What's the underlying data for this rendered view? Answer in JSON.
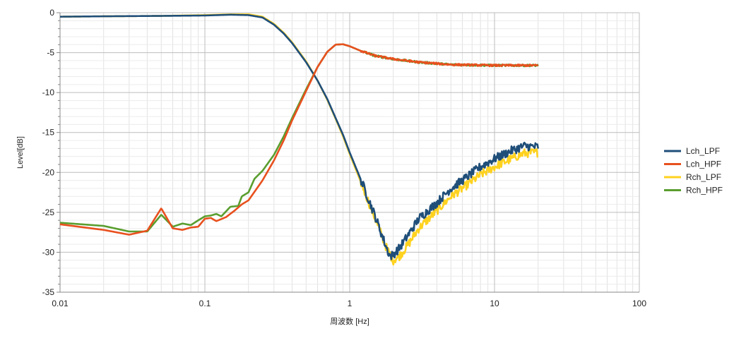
{
  "chart_data": {
    "type": "line",
    "xscale": "log",
    "xlabel": "周波数 [Hz]",
    "ylabel": "Level[dB]",
    "xlim": [
      0.01,
      100
    ],
    "ylim": [
      -35,
      0
    ],
    "xticks": [
      0.01,
      0.1,
      1,
      10,
      100
    ],
    "xtick_labels": [
      "0.01",
      "0.1",
      "1",
      "10",
      "100"
    ],
    "yticks": [
      0,
      -5,
      -10,
      -15,
      -20,
      -25,
      -30,
      -35
    ],
    "ytick_labels": [
      "0",
      "-5",
      "-10",
      "-15",
      "-20",
      "-25",
      "-30",
      "-35"
    ],
    "grid": true,
    "legend_position": "right",
    "series": [
      {
        "name": "Lch_LPF",
        "color": "#1f4e79",
        "points": [
          [
            0.01,
            -0.5
          ],
          [
            0.02,
            -0.45
          ],
          [
            0.05,
            -0.4
          ],
          [
            0.1,
            -0.35
          ],
          [
            0.15,
            -0.25
          ],
          [
            0.2,
            -0.3
          ],
          [
            0.25,
            -0.6
          ],
          [
            0.3,
            -1.5
          ],
          [
            0.35,
            -2.6
          ],
          [
            0.4,
            -3.8
          ],
          [
            0.5,
            -6.2
          ],
          [
            0.6,
            -8.5
          ],
          [
            0.7,
            -10.8
          ],
          [
            0.8,
            -13.2
          ],
          [
            0.9,
            -15.3
          ],
          [
            1.0,
            -17.5
          ],
          [
            1.2,
            -21.0
          ],
          [
            1.5,
            -25.5
          ],
          [
            1.8,
            -29.5
          ],
          [
            1.9,
            -30.5
          ],
          [
            2.0,
            -30.3
          ],
          [
            2.2,
            -29.5
          ],
          [
            2.5,
            -28.0
          ],
          [
            3,
            -25.8
          ],
          [
            4,
            -23.8
          ],
          [
            5,
            -22.0
          ],
          [
            6,
            -21.0
          ],
          [
            8,
            -19.3
          ],
          [
            10,
            -18.3
          ],
          [
            13,
            -17.3
          ],
          [
            16,
            -16.7
          ],
          [
            20,
            -16.8
          ]
        ]
      },
      {
        "name": "Lch_HPF",
        "color": "#e8501e",
        "points": [
          [
            0.01,
            -26.5
          ],
          [
            0.02,
            -27.2
          ],
          [
            0.03,
            -27.8
          ],
          [
            0.04,
            -27.3
          ],
          [
            0.05,
            -24.5
          ],
          [
            0.06,
            -27.0
          ],
          [
            0.07,
            -27.2
          ],
          [
            0.08,
            -26.9
          ],
          [
            0.09,
            -26.8
          ],
          [
            0.1,
            -25.8
          ],
          [
            0.11,
            -25.7
          ],
          [
            0.12,
            -26.1
          ],
          [
            0.14,
            -25.6
          ],
          [
            0.16,
            -24.8
          ],
          [
            0.18,
            -24.0
          ],
          [
            0.2,
            -23.5
          ],
          [
            0.25,
            -21.0
          ],
          [
            0.3,
            -18.5
          ],
          [
            0.35,
            -16.0
          ],
          [
            0.4,
            -13.5
          ],
          [
            0.5,
            -9.8
          ],
          [
            0.6,
            -6.8
          ],
          [
            0.7,
            -4.9
          ],
          [
            0.8,
            -4.0
          ],
          [
            0.9,
            -3.95
          ],
          [
            1.0,
            -4.2
          ],
          [
            1.2,
            -4.8
          ],
          [
            1.5,
            -5.4
          ],
          [
            2,
            -5.8
          ],
          [
            3,
            -6.2
          ],
          [
            5,
            -6.5
          ],
          [
            10,
            -6.6
          ],
          [
            20,
            -6.6
          ]
        ]
      },
      {
        "name": "Rch_LPF",
        "color": "#ffd21f",
        "points": [
          [
            0.01,
            -0.5
          ],
          [
            0.02,
            -0.45
          ],
          [
            0.05,
            -0.4
          ],
          [
            0.1,
            -0.3
          ],
          [
            0.15,
            -0.2
          ],
          [
            0.2,
            -0.2
          ],
          [
            0.25,
            -0.5
          ],
          [
            0.3,
            -1.4
          ],
          [
            0.35,
            -2.5
          ],
          [
            0.4,
            -3.7
          ],
          [
            0.5,
            -6.1
          ],
          [
            0.6,
            -8.5
          ],
          [
            0.7,
            -10.9
          ],
          [
            0.8,
            -13.3
          ],
          [
            0.9,
            -15.5
          ],
          [
            1.0,
            -17.7
          ],
          [
            1.2,
            -21.3
          ],
          [
            1.5,
            -25.8
          ],
          [
            1.8,
            -29.5
          ],
          [
            2.0,
            -31.0
          ],
          [
            2.2,
            -30.5
          ],
          [
            2.5,
            -29.2
          ],
          [
            3,
            -27.0
          ],
          [
            4,
            -24.8
          ],
          [
            5,
            -23.0
          ],
          [
            6,
            -22.0
          ],
          [
            8,
            -20.3
          ],
          [
            10,
            -19.3
          ],
          [
            13,
            -18.3
          ],
          [
            16,
            -17.6
          ],
          [
            20,
            -17.5
          ]
        ]
      },
      {
        "name": "Rch_HPF",
        "color": "#5a9e2f",
        "points": [
          [
            0.01,
            -26.3
          ],
          [
            0.02,
            -26.7
          ],
          [
            0.03,
            -27.4
          ],
          [
            0.04,
            -27.4
          ],
          [
            0.05,
            -25.3
          ],
          [
            0.06,
            -26.8
          ],
          [
            0.07,
            -26.4
          ],
          [
            0.08,
            -26.6
          ],
          [
            0.09,
            -26.0
          ],
          [
            0.1,
            -25.5
          ],
          [
            0.11,
            -25.4
          ],
          [
            0.12,
            -25.2
          ],
          [
            0.13,
            -25.5
          ],
          [
            0.15,
            -24.3
          ],
          [
            0.17,
            -24.2
          ],
          [
            0.18,
            -23.0
          ],
          [
            0.2,
            -22.5
          ],
          [
            0.22,
            -20.8
          ],
          [
            0.25,
            -19.8
          ],
          [
            0.3,
            -17.8
          ],
          [
            0.35,
            -15.5
          ],
          [
            0.4,
            -13.2
          ],
          [
            0.5,
            -9.6
          ],
          [
            0.6,
            -6.8
          ],
          [
            0.7,
            -4.9
          ],
          [
            0.8,
            -4.0
          ],
          [
            0.9,
            -3.95
          ],
          [
            1.0,
            -4.2
          ],
          [
            1.2,
            -4.8
          ],
          [
            1.5,
            -5.4
          ],
          [
            2,
            -5.8
          ],
          [
            3,
            -6.2
          ],
          [
            5,
            -6.5
          ],
          [
            10,
            -6.6
          ],
          [
            20,
            -6.6
          ]
        ]
      }
    ]
  }
}
